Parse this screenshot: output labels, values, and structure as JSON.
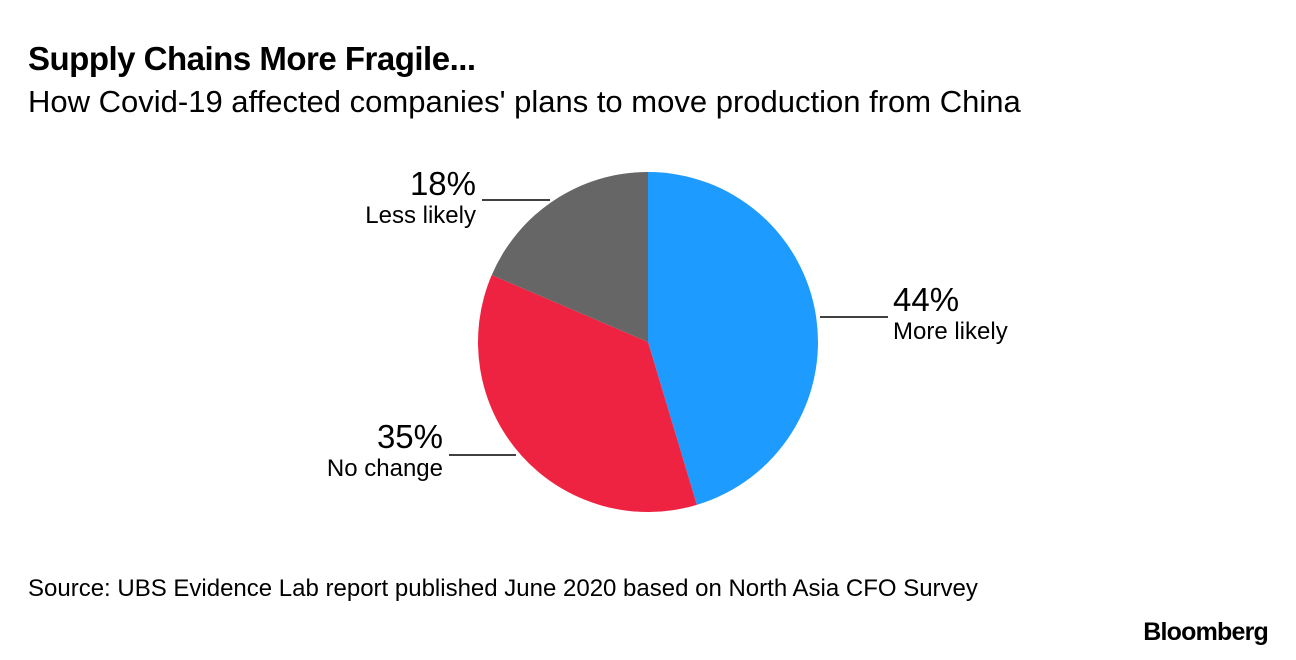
{
  "header": {
    "title": "Supply Chains More Fragile...",
    "subtitle": "How Covid-19 affected companies' plans to move production from China"
  },
  "chart_data": {
    "type": "pie",
    "title": "Supply Chains More Fragile...",
    "subtitle": "How Covid-19 affected companies' plans to move production from China",
    "slices": [
      {
        "name": "More likely",
        "value": 44,
        "label": "44%",
        "color": "#1e9bff"
      },
      {
        "name": "No change",
        "value": 35,
        "label": "35%",
        "color": "#ee2341"
      },
      {
        "name": "Less likely",
        "value": 18,
        "label": "18%",
        "color": "#666666"
      }
    ],
    "start": "12 o'clock",
    "direction": "clockwise"
  },
  "footer": {
    "source": "Source: UBS Evidence Lab report published June 2020 based on North Asia CFO Survey",
    "brand": "Bloomberg"
  }
}
